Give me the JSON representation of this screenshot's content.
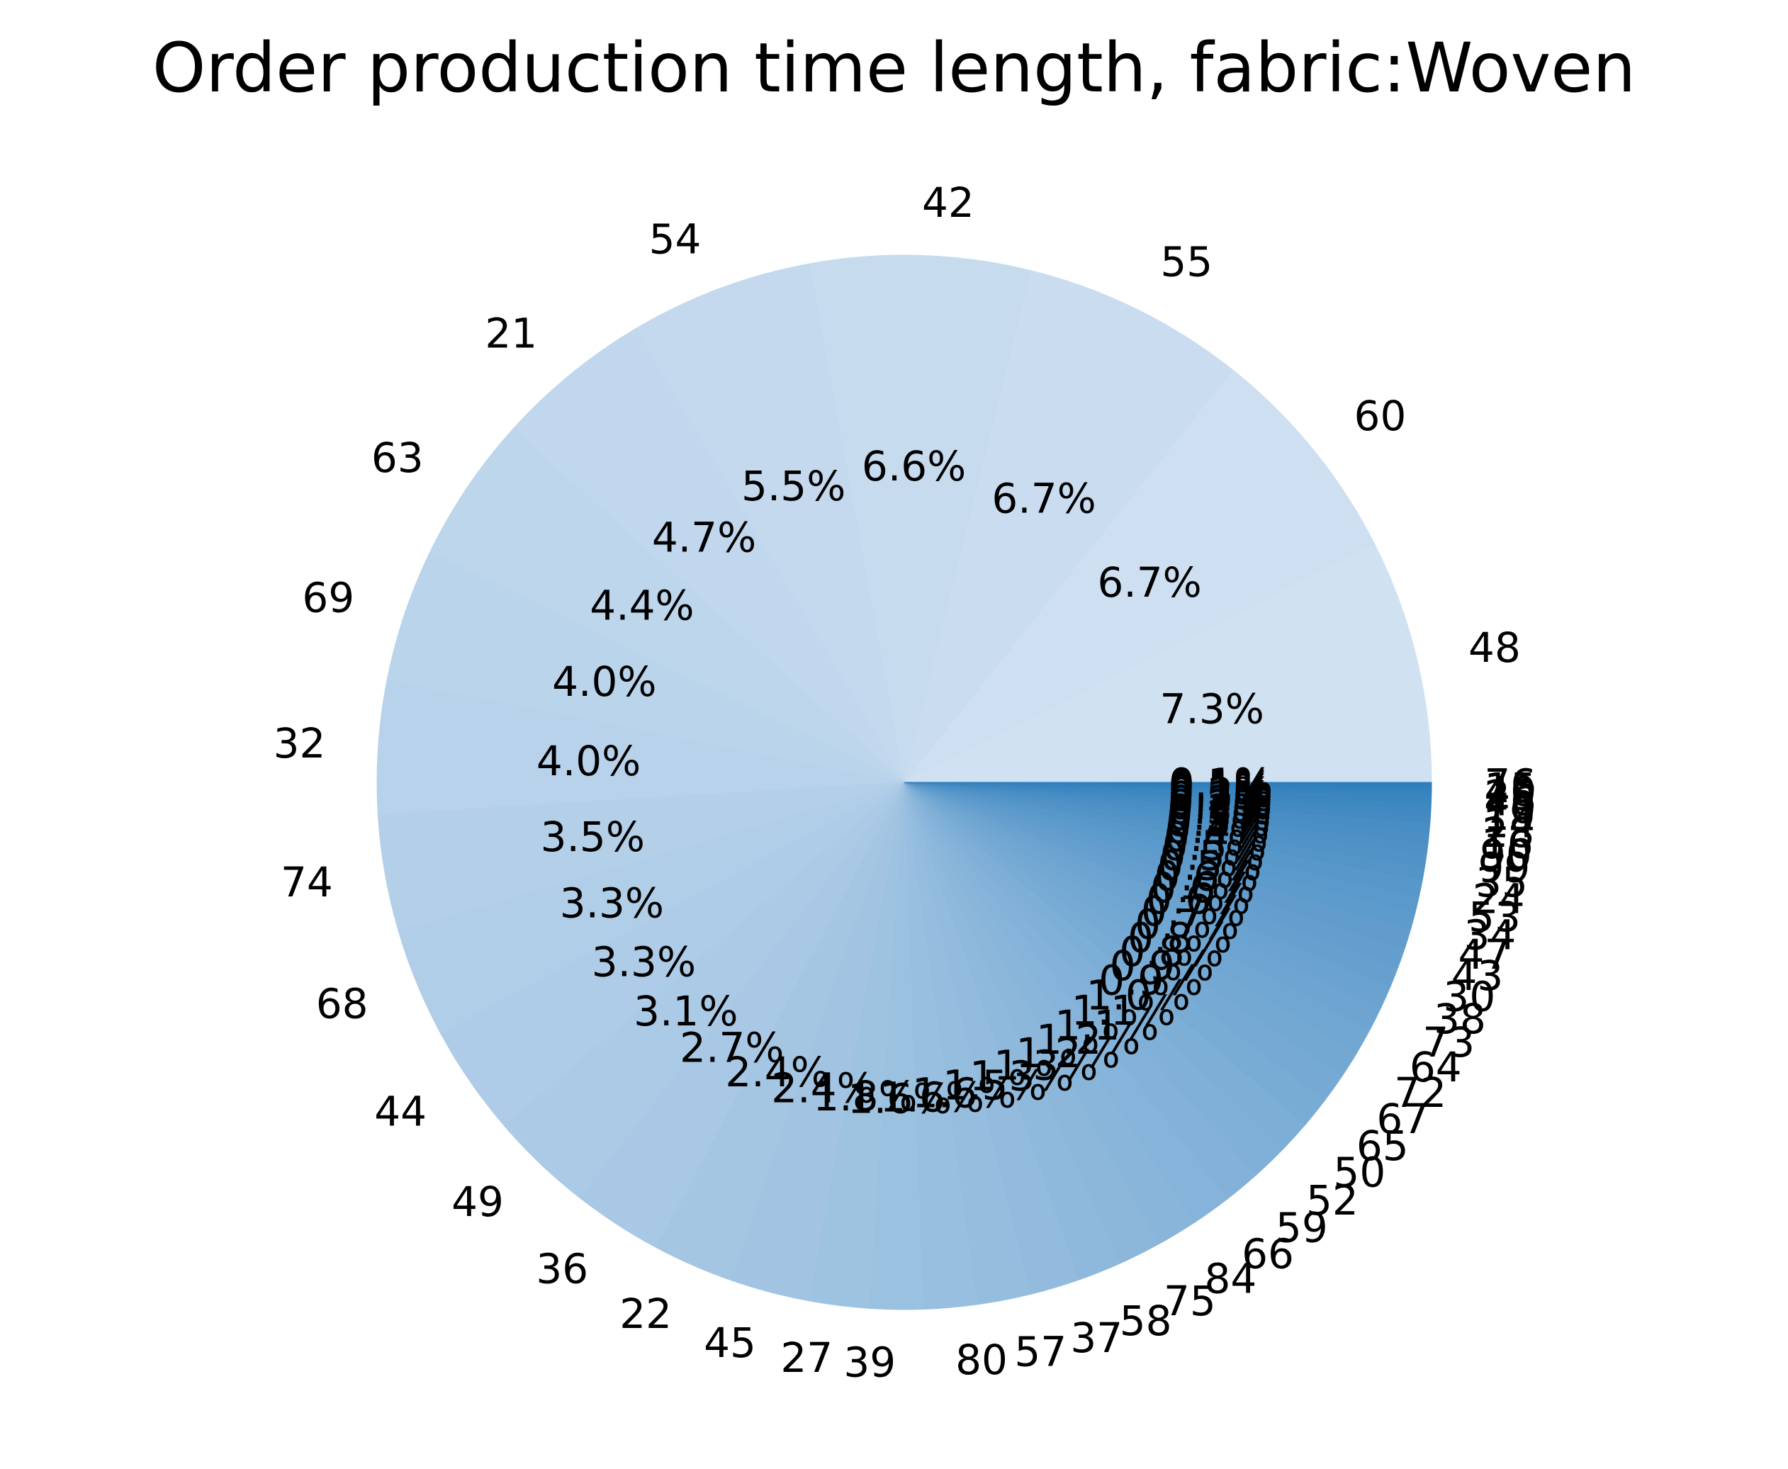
{
  "chart_data": {
    "type": "pie",
    "title": "Order production time length, fabric:Woven",
    "start_angle_deg": 0,
    "direction": "counterclockwise",
    "color_scale": {
      "from": "#d0e1f2",
      "to": "#2f7ebc"
    },
    "slices": [
      {
        "label": "48",
        "pct": 7.3
      },
      {
        "label": "60",
        "pct": 6.7
      },
      {
        "label": "55",
        "pct": 6.7
      },
      {
        "label": "42",
        "pct": 6.6
      },
      {
        "label": "54",
        "pct": 5.5
      },
      {
        "label": "21",
        "pct": 4.7
      },
      {
        "label": "63",
        "pct": 4.4
      },
      {
        "label": "69",
        "pct": 4.0
      },
      {
        "label": "32",
        "pct": 4.0
      },
      {
        "label": "74",
        "pct": 3.5
      },
      {
        "label": "68",
        "pct": 3.3
      },
      {
        "label": "44",
        "pct": 3.3
      },
      {
        "label": "49",
        "pct": 3.1
      },
      {
        "label": "36",
        "pct": 2.7
      },
      {
        "label": "22",
        "pct": 2.4
      },
      {
        "label": "45",
        "pct": 2.4
      },
      {
        "label": "27",
        "pct": 1.8
      },
      {
        "label": "39",
        "pct": 1.6
      },
      {
        "label": "80",
        "pct": 1.6
      },
      {
        "label": "57",
        "pct": 1.6
      },
      {
        "label": "37",
        "pct": 1.5
      },
      {
        "label": "58",
        "pct": 1.3
      },
      {
        "label": "75",
        "pct": 1.3
      },
      {
        "label": "84",
        "pct": 1.2
      },
      {
        "label": "66",
        "pct": 1.2
      },
      {
        "label": "59",
        "pct": 1.1
      },
      {
        "label": "52",
        "pct": 1.1
      },
      {
        "label": "50",
        "pct": 1.0
      },
      {
        "label": "65",
        "pct": 0.9
      },
      {
        "label": "67",
        "pct": 0.9
      },
      {
        "label": "72",
        "pct": 0.8
      },
      {
        "label": "64",
        "pct": 0.8
      },
      {
        "label": "73",
        "pct": 0.7
      },
      {
        "label": "38",
        "pct": 0.7
      },
      {
        "label": "30",
        "pct": 0.6
      },
      {
        "label": "43",
        "pct": 0.6
      },
      {
        "label": "47",
        "pct": 0.6
      },
      {
        "label": "34",
        "pct": 0.5
      },
      {
        "label": "53",
        "pct": 0.5
      },
      {
        "label": "24",
        "pct": 0.5
      },
      {
        "label": "35",
        "pct": 0.4
      },
      {
        "label": "99",
        "pct": 0.4
      },
      {
        "label": "90",
        "pct": 0.3
      },
      {
        "label": "16",
        "pct": 0.3
      },
      {
        "label": "28",
        "pct": 0.3
      },
      {
        "label": "14",
        "pct": 0.2
      },
      {
        "label": "19",
        "pct": 0.2
      },
      {
        "label": "70",
        "pct": 0.2
      },
      {
        "label": "46",
        "pct": 0.2
      },
      {
        "label": "25",
        "pct": 0.1
      },
      {
        "label": "40",
        "pct": 0.1
      },
      {
        "label": "15",
        "pct": 0.1
      },
      {
        "label": "76",
        "pct": 0.1
      }
    ]
  }
}
